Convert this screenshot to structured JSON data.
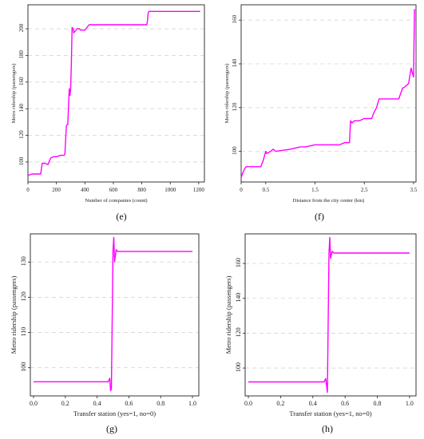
{
  "colors": {
    "line": "#ff00ff",
    "grid": "#d6d6d6",
    "axis": "#222222"
  },
  "panels": [
    {
      "label": "(e)"
    },
    {
      "label": "(f)"
    },
    {
      "label": "(g)"
    },
    {
      "label": "(h)"
    }
  ],
  "chart_data": [
    {
      "type": "line",
      "xlabel": "Number of companies (count)",
      "ylabel": "Metro ridership (passengers)",
      "xticks": [
        "0",
        "200",
        "400",
        "600",
        "800",
        "1000",
        "1200"
      ],
      "yticks": [
        "100",
        "120",
        "140",
        "160",
        "180",
        "200"
      ],
      "xlim": [
        0,
        1240
      ],
      "ylim": [
        85,
        218
      ],
      "grid": "horizontal dashed",
      "series": [
        {
          "x": [
            0,
            30,
            90,
            100,
            120,
            140,
            160,
            180,
            200,
            230,
            255,
            260,
            270,
            275,
            280,
            290,
            295,
            300,
            305,
            310,
            318,
            322,
            330,
            345,
            360,
            370,
            400,
            430,
            440,
            500,
            600,
            700,
            800,
            835,
            840,
            845,
            850,
            870,
            1000,
            1100,
            1210
          ],
          "y": [
            90,
            91,
            91,
            99,
            99,
            98,
            103,
            104,
            104,
            105,
            105,
            106,
            127,
            128,
            128,
            155,
            150,
            155,
            175,
            201,
            200,
            197,
            198,
            200,
            200,
            199,
            199,
            203,
            203,
            203,
            203,
            203,
            203,
            203,
            206,
            212,
            213,
            213,
            213,
            213,
            213
          ]
        }
      ]
    },
    {
      "type": "line",
      "xlabel": "Distance from the city center (km)",
      "ylabel": "Metro ridership (passengers)",
      "xticks": [
        "0",
        "0.5",
        "1.5",
        "2.5",
        "3.5"
      ],
      "yticks": [
        "100",
        "120",
        "140",
        "160"
      ],
      "xlim": [
        0,
        3.55
      ],
      "ylim": [
        86,
        167
      ],
      "grid": "horizontal dashed",
      "series": [
        {
          "x": [
            0,
            0.03,
            0.07,
            0.1,
            0.3,
            0.4,
            0.45,
            0.5,
            0.52,
            0.6,
            0.65,
            0.7,
            1.0,
            1.2,
            1.3,
            1.5,
            1.6,
            2.0,
            2.1,
            2.2,
            2.22,
            2.25,
            2.3,
            2.4,
            2.5,
            2.65,
            2.7,
            2.75,
            2.8,
            2.85,
            3.0,
            3.2,
            3.28,
            3.3,
            3.4,
            3.45,
            3.5,
            3.52
          ],
          "y": [
            88,
            90,
            92,
            93,
            93,
            93,
            96,
            100,
            99,
            100,
            101,
            100,
            101,
            102,
            102,
            103,
            103,
            103,
            104,
            104,
            114,
            113,
            114,
            114,
            115,
            115,
            118,
            120,
            124,
            124,
            124,
            124,
            129,
            129,
            131,
            138,
            134,
            165
          ]
        }
      ]
    },
    {
      "type": "line",
      "xlabel": "Transfer station (yes=1, no=0)",
      "ylabel": "Metro ridership (passengers)",
      "xticks": [
        "0.0",
        "0.2",
        "0.4",
        "0.6",
        "0.8",
        "1.0"
      ],
      "yticks": [
        "100",
        "110",
        "120",
        "130"
      ],
      "xlim": [
        -0.02,
        1.04
      ],
      "ylim": [
        92,
        138
      ],
      "grid": "horizontal dashed",
      "series": [
        {
          "x": [
            0,
            0.47,
            0.48,
            0.485,
            0.49,
            0.5,
            0.505,
            0.51,
            0.52,
            0.53,
            1.0
          ],
          "y": [
            96,
            96,
            97,
            93.5,
            94,
            133,
            137,
            130,
            133.5,
            133,
            133
          ]
        }
      ]
    },
    {
      "type": "line",
      "xlabel": "Transfer station (yes=1, no=0)",
      "ylabel": "Metro ridership (passengers)",
      "xticks": [
        "0.0",
        "0.2",
        "0.4",
        "0.6",
        "0.8",
        "1.0"
      ],
      "yticks": [
        "100",
        "120",
        "140",
        "160"
      ],
      "xlim": [
        -0.02,
        1.04
      ],
      "ylim": [
        84,
        177
      ],
      "grid": "horizontal dashed",
      "series": [
        {
          "x": [
            0,
            0.47,
            0.48,
            0.485,
            0.49,
            0.5,
            0.505,
            0.51,
            0.52,
            0.53,
            1.0
          ],
          "y": [
            92,
            92,
            94,
            90,
            86,
            166,
            175,
            163,
            167,
            166,
            166
          ]
        }
      ]
    }
  ]
}
